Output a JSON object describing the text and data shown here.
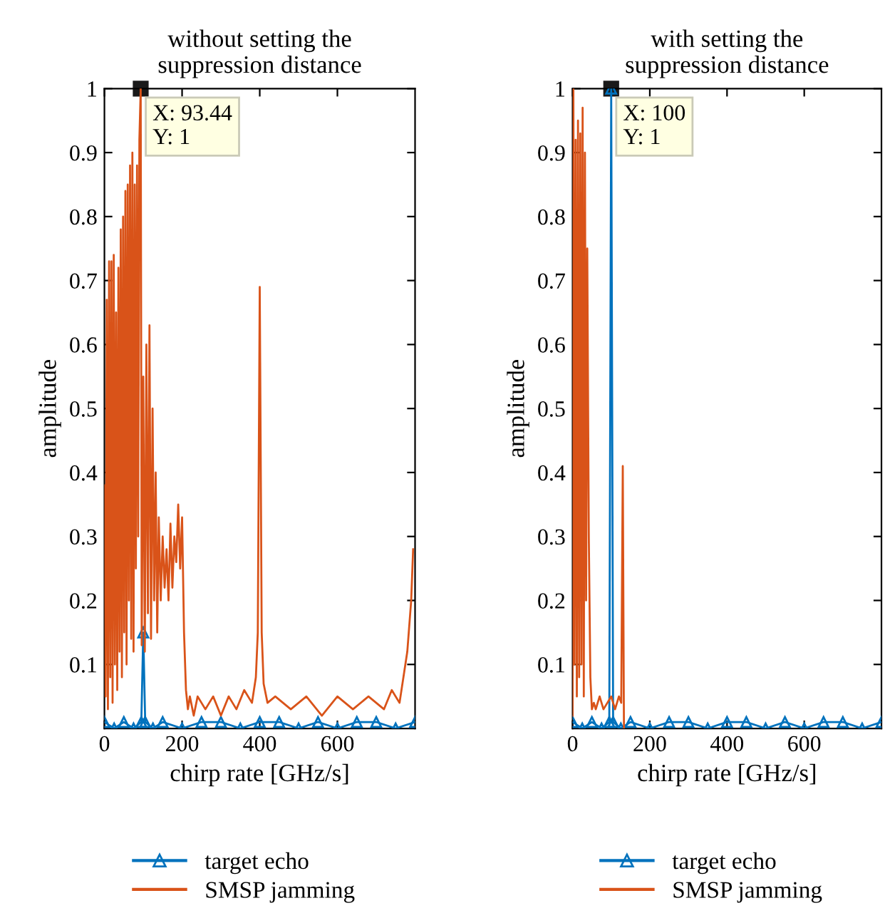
{
  "chart_data": [
    {
      "type": "line",
      "title": "without setting the\nsuppression distance",
      "xlabel": "chirp rate [GHz/s]",
      "ylabel": "amplitude",
      "xlim": [
        0,
        800
      ],
      "xticks": [
        0,
        200,
        400,
        600
      ],
      "ylim": [
        0,
        1
      ],
      "yticks": [
        0.1,
        0.2,
        0.3,
        0.4,
        0.5,
        0.6,
        0.7,
        0.8,
        0.9,
        1
      ],
      "grid": false,
      "legend": "bottom",
      "annotations": [
        {
          "text": "X: 93.44\nY: 1",
          "x": 93.44,
          "y": 1
        }
      ],
      "series": [
        {
          "name": "target echo",
          "color": "#0072bd",
          "marker": "triangle",
          "x": [
            0,
            25,
            50,
            75,
            95,
            100,
            105,
            125,
            150,
            200,
            250,
            300,
            350,
            400,
            450,
            500,
            550,
            600,
            650,
            700,
            750,
            800
          ],
          "values": [
            0.01,
            0,
            0.01,
            0,
            0.01,
            0.15,
            0.01,
            0,
            0.01,
            0,
            0.01,
            0.01,
            0,
            0.01,
            0.01,
            0,
            0.01,
            0,
            0.01,
            0.01,
            0,
            0.01
          ]
        },
        {
          "name": "SMSP jamming",
          "color": "#d95319",
          "marker": "none",
          "x": [
            0,
            3,
            6,
            9,
            12,
            15,
            18,
            21,
            24,
            27,
            30,
            33,
            36,
            39,
            42,
            45,
            48,
            51,
            54,
            57,
            60,
            63,
            66,
            69,
            72,
            75,
            78,
            81,
            84,
            87,
            90,
            93.44,
            96,
            100,
            104,
            108,
            112,
            116,
            120,
            124,
            128,
            132,
            136,
            140,
            145,
            150,
            155,
            160,
            165,
            170,
            175,
            180,
            185,
            190,
            195,
            200,
            205,
            210,
            215,
            220,
            230,
            240,
            260,
            280,
            300,
            320,
            340,
            360,
            380,
            390,
            395,
            400,
            405,
            410,
            420,
            440,
            480,
            520,
            560,
            600,
            640,
            680,
            720,
            740,
            760,
            770,
            780,
            790,
            795
          ],
          "values": [
            0.38,
            0.05,
            0.67,
            0.03,
            0.73,
            0.08,
            0.73,
            0.04,
            0.74,
            0.1,
            0.65,
            0.06,
            0.72,
            0.12,
            0.78,
            0.08,
            0.8,
            0.15,
            0.84,
            0.1,
            0.85,
            0.2,
            0.88,
            0.14,
            0.9,
            0.12,
            0.85,
            0.25,
            0.88,
            0.3,
            0.92,
            1,
            0.13,
            0.55,
            0.12,
            0.6,
            0.18,
            0.63,
            0.14,
            0.5,
            0.2,
            0.4,
            0.15,
            0.33,
            0.2,
            0.3,
            0.22,
            0.28,
            0.2,
            0.32,
            0.22,
            0.3,
            0.26,
            0.35,
            0.25,
            0.33,
            0.15,
            0.06,
            0.03,
            0.05,
            0.02,
            0.05,
            0.03,
            0.05,
            0.02,
            0.05,
            0.03,
            0.06,
            0.04,
            0.08,
            0.15,
            0.69,
            0.15,
            0.07,
            0.04,
            0.05,
            0.03,
            0.05,
            0.02,
            0.05,
            0.03,
            0.05,
            0.03,
            0.06,
            0.04,
            0.08,
            0.12,
            0.2,
            0.28
          ]
        }
      ]
    },
    {
      "type": "line",
      "title": "with setting the\nsuppression distance",
      "xlabel": "chirp rate [GHz/s]",
      "ylabel": "amplitude",
      "xlim": [
        0,
        800
      ],
      "xticks": [
        0,
        200,
        400,
        600
      ],
      "ylim": [
        0,
        1
      ],
      "yticks": [
        0.1,
        0.2,
        0.3,
        0.4,
        0.5,
        0.6,
        0.7,
        0.8,
        0.9,
        1
      ],
      "grid": false,
      "legend": "bottom",
      "annotations": [
        {
          "text": "X: 100\nY: 1",
          "x": 100,
          "y": 1
        }
      ],
      "series": [
        {
          "name": "target echo",
          "color": "#0072bd",
          "marker": "triangle",
          "x": [
            0,
            25,
            50,
            75,
            95,
            100,
            105,
            125,
            150,
            200,
            250,
            300,
            350,
            400,
            450,
            500,
            550,
            600,
            650,
            700,
            750,
            800
          ],
          "values": [
            0.01,
            0,
            0.01,
            0,
            0.01,
            1,
            0.01,
            0,
            0.01,
            0,
            0.01,
            0.01,
            0,
            0.01,
            0.01,
            0,
            0.01,
            0,
            0.01,
            0.01,
            0,
            0.01
          ]
        },
        {
          "name": "SMSP jamming",
          "color": "#d95319",
          "marker": "none",
          "x": [
            0,
            2,
            5,
            8,
            11,
            14,
            17,
            20,
            23,
            26,
            29,
            32,
            35,
            38,
            42,
            46,
            50,
            55,
            60,
            70,
            80,
            90,
            100,
            110,
            120,
            126,
            130,
            133
          ],
          "values": [
            0.02,
            1,
            0.1,
            0.92,
            0.05,
            0.95,
            0.08,
            0.93,
            0.1,
            0.97,
            0.05,
            0.9,
            0.2,
            0.75,
            0.3,
            0.08,
            0.03,
            0.04,
            0.03,
            0.05,
            0.03,
            0.04,
            0.05,
            0.03,
            0.05,
            0.04,
            0.41,
            0
          ]
        }
      ]
    }
  ]
}
